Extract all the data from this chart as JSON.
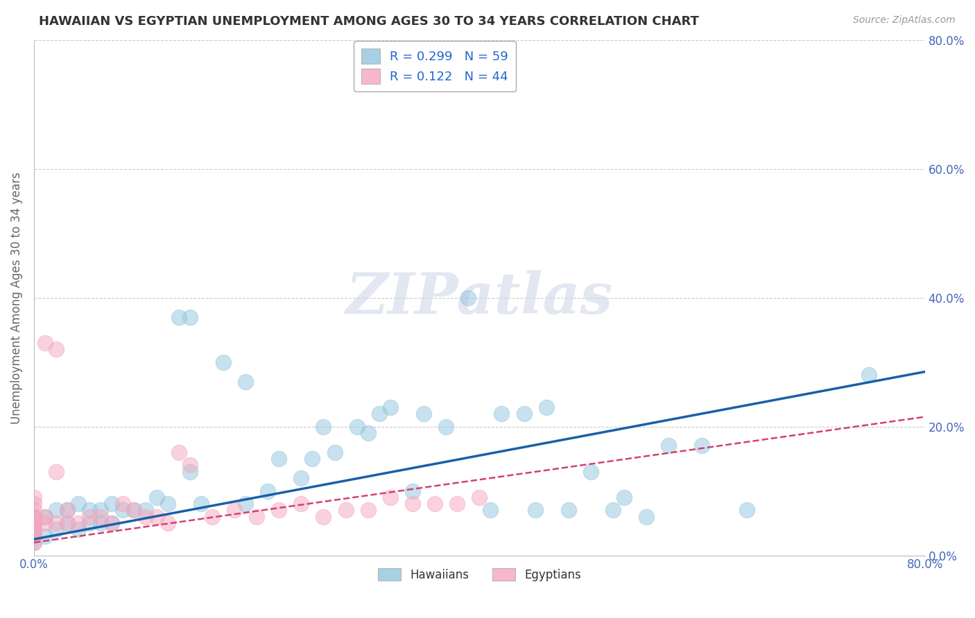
{
  "title": "HAWAIIAN VS EGYPTIAN UNEMPLOYMENT AMONG AGES 30 TO 34 YEARS CORRELATION CHART",
  "source": "Source: ZipAtlas.com",
  "ylabel": "Unemployment Among Ages 30 to 34 years",
  "xlim": [
    0.0,
    0.8
  ],
  "ylim": [
    0.0,
    0.8
  ],
  "yticks": [
    0.0,
    0.2,
    0.4,
    0.6,
    0.8
  ],
  "ytick_labels": [
    "0.0%",
    "20.0%",
    "40.0%",
    "60.0%",
    "80.0%"
  ],
  "hawaiian_R": 0.299,
  "hawaiian_N": 59,
  "egyptian_R": 0.122,
  "egyptian_N": 44,
  "hawaiian_color": "#92c5de",
  "egyptian_color": "#f4a6bd",
  "hawaiian_line_color": "#1a5fa8",
  "egyptian_line_color": "#d44070",
  "background_color": "#ffffff",
  "grid_color": "#cccccc",
  "hawaiian_line_y0": 0.025,
  "hawaiian_line_y1": 0.285,
  "egyptian_line_y0": 0.02,
  "egyptian_line_y1": 0.215,
  "hawaiians_x": [
    0.0,
    0.0,
    0.0,
    0.0,
    0.0,
    0.01,
    0.01,
    0.02,
    0.02,
    0.03,
    0.03,
    0.04,
    0.04,
    0.05,
    0.05,
    0.06,
    0.06,
    0.07,
    0.07,
    0.08,
    0.09,
    0.1,
    0.11,
    0.12,
    0.13,
    0.14,
    0.14,
    0.15,
    0.17,
    0.19,
    0.19,
    0.21,
    0.22,
    0.24,
    0.25,
    0.26,
    0.27,
    0.29,
    0.3,
    0.31,
    0.32,
    0.34,
    0.35,
    0.37,
    0.39,
    0.41,
    0.42,
    0.44,
    0.45,
    0.46,
    0.48,
    0.5,
    0.52,
    0.53,
    0.55,
    0.57,
    0.6,
    0.64,
    0.75
  ],
  "hawaiians_y": [
    0.02,
    0.03,
    0.04,
    0.05,
    0.06,
    0.03,
    0.06,
    0.04,
    0.07,
    0.05,
    0.07,
    0.04,
    0.08,
    0.05,
    0.07,
    0.05,
    0.07,
    0.05,
    0.08,
    0.07,
    0.07,
    0.07,
    0.09,
    0.08,
    0.37,
    0.37,
    0.13,
    0.08,
    0.3,
    0.27,
    0.08,
    0.1,
    0.15,
    0.12,
    0.15,
    0.2,
    0.16,
    0.2,
    0.19,
    0.22,
    0.23,
    0.1,
    0.22,
    0.2,
    0.4,
    0.07,
    0.22,
    0.22,
    0.07,
    0.23,
    0.07,
    0.13,
    0.07,
    0.09,
    0.06,
    0.17,
    0.17,
    0.07,
    0.28
  ],
  "egyptians_x": [
    0.0,
    0.0,
    0.0,
    0.0,
    0.0,
    0.0,
    0.0,
    0.0,
    0.0,
    0.0,
    0.0,
    0.0,
    0.01,
    0.01,
    0.01,
    0.02,
    0.02,
    0.02,
    0.03,
    0.03,
    0.04,
    0.05,
    0.06,
    0.07,
    0.08,
    0.09,
    0.1,
    0.11,
    0.12,
    0.13,
    0.14,
    0.16,
    0.18,
    0.2,
    0.22,
    0.24,
    0.26,
    0.28,
    0.3,
    0.32,
    0.34,
    0.36,
    0.38,
    0.4
  ],
  "egyptians_y": [
    0.02,
    0.03,
    0.04,
    0.05,
    0.06,
    0.07,
    0.08,
    0.09,
    0.03,
    0.04,
    0.05,
    0.06,
    0.05,
    0.06,
    0.33,
    0.05,
    0.13,
    0.32,
    0.05,
    0.07,
    0.05,
    0.06,
    0.06,
    0.05,
    0.08,
    0.07,
    0.06,
    0.06,
    0.05,
    0.16,
    0.14,
    0.06,
    0.07,
    0.06,
    0.07,
    0.08,
    0.06,
    0.07,
    0.07,
    0.09,
    0.08,
    0.08,
    0.08,
    0.09
  ]
}
